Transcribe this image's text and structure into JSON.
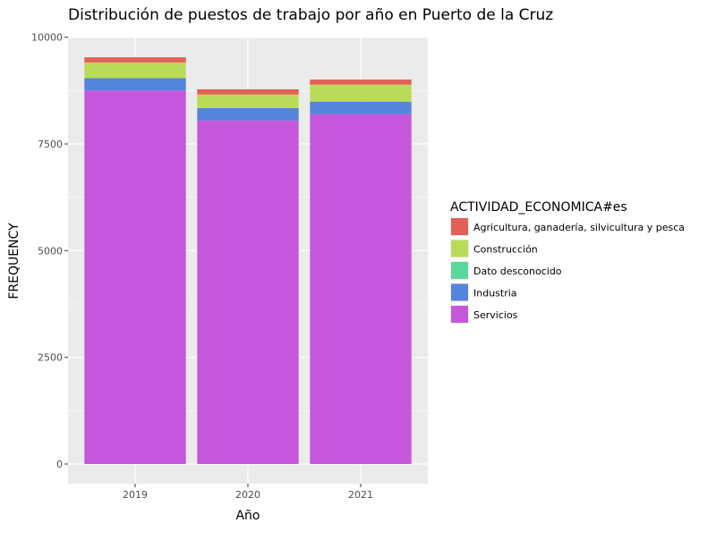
{
  "chart_data": {
    "type": "bar",
    "stacked": true,
    "title": "Distribución de puestos de trabajo por año en Puerto de la Cruz",
    "xlabel": "Año",
    "ylabel": "FREQUENCY",
    "ylim": [
      -500,
      10000
    ],
    "yticks": [
      0,
      2500,
      5000,
      7500,
      10000
    ],
    "ytick_labels": [
      "0",
      "2500",
      "5000",
      "7500",
      "10000"
    ],
    "categories": [
      "2019",
      "2020",
      "2021"
    ],
    "legend_title": "ACTIVIDAD_ECONOMICA#es",
    "legend_position": "right",
    "grid": true,
    "series": [
      {
        "name": "Agricultura, ganadería, silvicultura y pesca",
        "color": "#E16058",
        "values": [
          120,
          120,
          120
        ]
      },
      {
        "name": "Construcción",
        "color": "#B9DB58",
        "values": [
          370,
          320,
          400
        ]
      },
      {
        "name": "Dato desconocido",
        "color": "#59D89C",
        "values": [
          0,
          0,
          0
        ]
      },
      {
        "name": "Industria",
        "color": "#5484DC",
        "values": [
          290,
          290,
          290
        ]
      },
      {
        "name": "Servicios",
        "color": "#C557DC",
        "values": [
          8750,
          8050,
          8200
        ]
      }
    ],
    "stack_order_bottom_to_top": [
      "Servicios",
      "Industria",
      "Dato desconocido",
      "Construcción",
      "Agricultura, ganadería, silvicultura y pesca"
    ]
  }
}
